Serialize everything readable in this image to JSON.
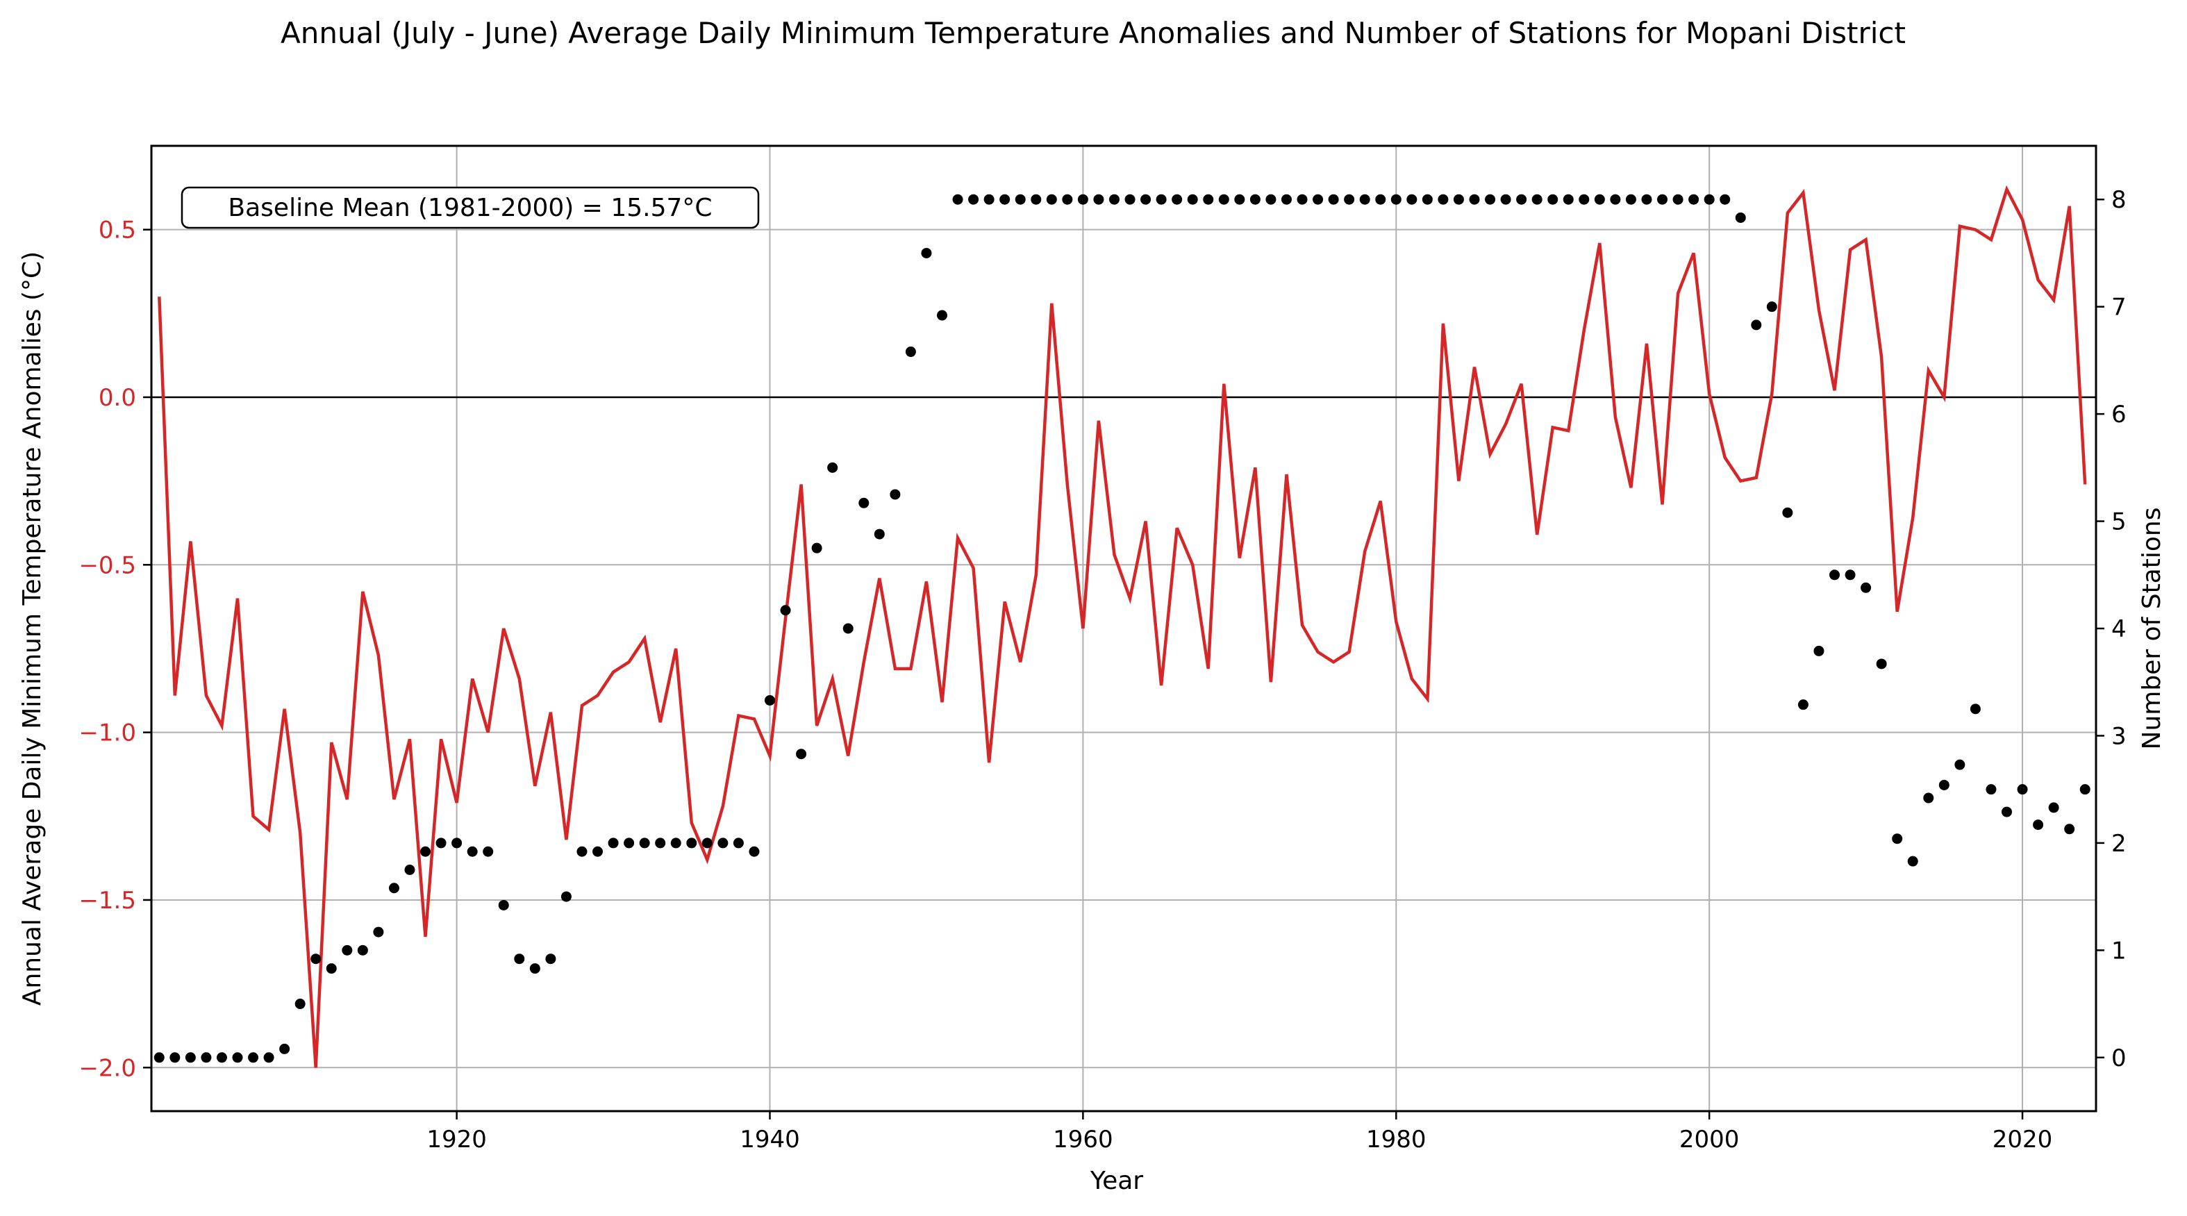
{
  "chart_data": {
    "type": "line",
    "title": "Annual (July - June) Average Daily Minimum Temperature Anomalies and Number of Stations for Mopani District",
    "xlabel": "Year",
    "ylabel_left": "Annual Average Daily Minimum Temperature Anomalies (°C)",
    "ylabel_right": "Number of Stations",
    "annotation": "Baseline Mean (1981-2000) = 15.57°C",
    "xlim": [
      1900.5,
      2024.7
    ],
    "ylim_left": [
      -2.13,
      0.75
    ],
    "ylim_right": [
      -0.5,
      8.5
    ],
    "x_ticks": [
      1920,
      1940,
      1960,
      1980,
      2000,
      2020
    ],
    "y_ticks_left": [
      0.5,
      0.0,
      -0.5,
      -1.0,
      -1.5,
      -2.0
    ],
    "y_tick_labels_left": [
      "0.5",
      "0.0",
      "−0.5",
      "−1.0",
      "−1.5",
      "−2.0"
    ],
    "y_ticks_right": [
      0,
      1,
      2,
      3,
      4,
      5,
      6,
      7,
      8
    ],
    "grid": true,
    "zero_line": true,
    "colors": {
      "anomaly": "#d62728",
      "stations": "#000000",
      "axis_left": "#d62728",
      "axis_right": "#000000"
    },
    "x": [
      1901,
      1902,
      1903,
      1904,
      1905,
      1906,
      1907,
      1908,
      1909,
      1910,
      1911,
      1912,
      1913,
      1914,
      1915,
      1916,
      1917,
      1918,
      1919,
      1920,
      1921,
      1922,
      1923,
      1924,
      1925,
      1926,
      1927,
      1928,
      1929,
      1930,
      1931,
      1932,
      1933,
      1934,
      1935,
      1936,
      1937,
      1938,
      1939,
      1940,
      1941,
      1942,
      1943,
      1944,
      1945,
      1946,
      1947,
      1948,
      1949,
      1950,
      1951,
      1952,
      1953,
      1954,
      1955,
      1956,
      1957,
      1958,
      1959,
      1960,
      1961,
      1962,
      1963,
      1964,
      1965,
      1966,
      1967,
      1968,
      1969,
      1970,
      1971,
      1972,
      1973,
      1974,
      1975,
      1976,
      1977,
      1978,
      1979,
      1980,
      1981,
      1982,
      1983,
      1984,
      1985,
      1986,
      1987,
      1988,
      1989,
      1990,
      1991,
      1992,
      1993,
      1994,
      1995,
      1996,
      1997,
      1998,
      1999,
      2000,
      2001,
      2002,
      2003,
      2004,
      2005,
      2006,
      2007,
      2008,
      2009,
      2010,
      2011,
      2012,
      2013,
      2014,
      2015,
      2016,
      2017,
      2018,
      2019,
      2020,
      2021,
      2022,
      2023,
      2024
    ],
    "series": [
      {
        "values": [
          0.3,
          -0.89,
          -0.43,
          -0.89,
          -0.98,
          -0.6,
          -1.25,
          -1.29,
          -0.93,
          -1.3,
          -2.0,
          -1.03,
          -1.2,
          -0.58,
          -0.77,
          -1.2,
          -1.02,
          -1.61,
          -1.02,
          -1.21,
          -0.84,
          -1.0,
          -0.69,
          -0.84,
          -1.16,
          -0.94,
          -1.32,
          -0.92,
          -0.89,
          -0.82,
          -0.79,
          -0.72,
          -0.97,
          -0.75,
          -1.27,
          -1.38,
          -1.22,
          -0.95,
          -0.96,
          -1.07,
          -0.66,
          -0.26,
          -0.98,
          -0.84,
          -1.07,
          -0.79,
          -0.54,
          -0.81,
          -0.81,
          -0.55,
          -0.91,
          -0.42,
          -0.51,
          -1.09,
          -0.61,
          -0.79,
          -0.53,
          0.28,
          -0.26,
          -0.69,
          -0.07,
          -0.47,
          -0.6,
          -0.37,
          -0.86,
          -0.39,
          -0.5,
          -0.81,
          0.04,
          -0.48,
          -0.21,
          -0.85,
          -0.23,
          -0.68,
          -0.76,
          -0.79,
          -0.76,
          -0.46,
          -0.31,
          -0.67,
          -0.84,
          -0.9,
          0.22,
          -0.25,
          0.09,
          -0.17,
          -0.08,
          0.04,
          -0.41,
          -0.09,
          -0.1,
          0.2,
          0.46,
          -0.06,
          -0.27,
          0.16,
          -0.32,
          0.31,
          0.43,
          0.01,
          -0.18,
          -0.25,
          -0.24,
          0.01,
          0.55,
          0.61,
          0.26,
          0.02,
          0.44,
          0.47,
          0.12,
          -0.64,
          -0.36,
          0.08,
          0.0,
          0.51,
          0.5,
          0.47,
          0.62,
          0.53,
          0.35,
          0.29,
          0.57,
          -0.26
        ]
      },
      {
        "values": [
          0,
          0,
          0,
          0,
          0,
          0,
          0,
          0,
          0.08,
          0.5,
          0.92,
          0.83,
          1.0,
          1.0,
          1.17,
          1.58,
          1.75,
          1.92,
          2,
          2,
          1.92,
          1.92,
          1.42,
          0.92,
          0.83,
          0.92,
          1.5,
          1.92,
          1.92,
          2,
          2,
          2,
          2,
          2,
          2,
          2,
          2,
          2,
          1.92,
          3.33,
          4.17,
          2.83,
          4.75,
          5.5,
          4.0,
          5.17,
          4.88,
          5.25,
          6.58,
          7.5,
          6.92,
          8,
          8,
          8,
          8,
          8,
          8,
          8,
          8,
          8,
          8,
          8,
          8,
          8,
          8,
          8,
          8,
          8,
          8,
          8,
          8,
          8,
          8,
          8,
          8,
          8,
          8,
          8,
          8,
          8,
          8,
          8,
          8,
          8,
          8,
          8,
          8,
          8,
          8,
          8,
          8,
          8,
          8,
          8,
          8,
          8,
          8,
          8,
          8,
          8,
          8,
          7.83,
          6.83,
          7.0,
          5.08,
          3.29,
          3.79,
          4.5,
          4.5,
          4.38,
          3.67,
          2.04,
          1.83,
          2.42,
          2.54,
          2.73,
          3.25,
          2.5,
          2.29,
          2.5,
          2.17,
          2.33,
          2.13,
          2.5
        ]
      }
    ]
  }
}
